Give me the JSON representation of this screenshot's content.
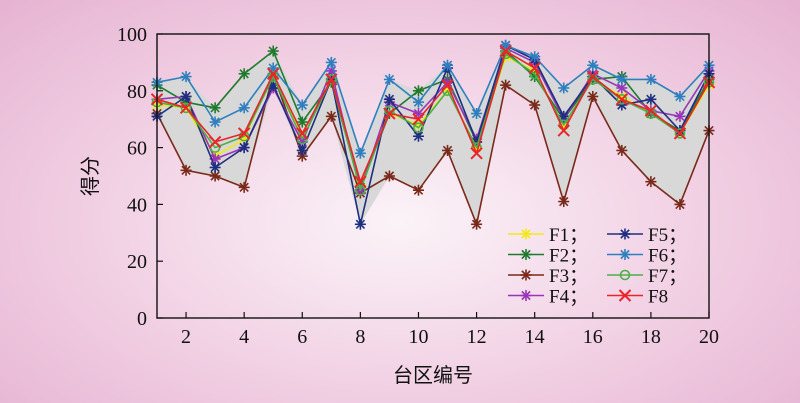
{
  "chart_data": {
    "type": "line",
    "title": "",
    "xlabel": "台区编号",
    "ylabel": "得分",
    "xlim": [
      1,
      20
    ],
    "ylim": [
      0,
      100
    ],
    "x": [
      1,
      2,
      3,
      4,
      5,
      6,
      7,
      8,
      9,
      10,
      11,
      12,
      13,
      14,
      15,
      16,
      17,
      18,
      19,
      20
    ],
    "x_ticks": [
      2,
      4,
      6,
      8,
      10,
      12,
      14,
      16,
      18,
      20
    ],
    "y_ticks": [
      0,
      20,
      40,
      60,
      80,
      100
    ],
    "grid": false,
    "legend_position": "bottom-right",
    "band_fill_color": "#d8d8d8",
    "series": [
      {
        "name": "F1；",
        "color": "#f2ea18",
        "marker": "star",
        "values": [
          75,
          74,
          57,
          63,
          86,
          64,
          83,
          47,
          72,
          68,
          80,
          60,
          92,
          87,
          68,
          84,
          78,
          72,
          65,
          82
        ]
      },
      {
        "name": "F2；",
        "color": "#1f7a2e",
        "marker": "star",
        "values": [
          82,
          76,
          74,
          86,
          94,
          69,
          83,
          46,
          72,
          80,
          84,
          62,
          94,
          85,
          70,
          84,
          85,
          72,
          66,
          84
        ]
      },
      {
        "name": "F3；",
        "color": "#7a2a1a",
        "marker": "star",
        "values": [
          72,
          52,
          50,
          46,
          86,
          57,
          71,
          44,
          50,
          45,
          59,
          33,
          82,
          75,
          41,
          78,
          59,
          48,
          40,
          66
        ]
      },
      {
        "name": "F4；",
        "color": "#9a35b8",
        "marker": "star",
        "values": [
          77,
          78,
          56,
          60,
          81,
          62,
          87,
          45,
          76,
          72,
          83,
          63,
          95,
          90,
          70,
          86,
          81,
          73,
          71,
          87
        ]
      },
      {
        "name": "F5；",
        "color": "#1f2f80",
        "marker": "star",
        "values": [
          71,
          78,
          53,
          60,
          82,
          59,
          84,
          33,
          77,
          64,
          88,
          62,
          96,
          91,
          71,
          85,
          75,
          77,
          66,
          86
        ]
      },
      {
        "name": "F6；",
        "color": "#2f7fbf",
        "marker": "star",
        "values": [
          83,
          85,
          69,
          74,
          88,
          75,
          90,
          58,
          84,
          76,
          89,
          72,
          96,
          92,
          81,
          89,
          84,
          84,
          78,
          89
        ]
      },
      {
        "name": "F7；",
        "color": "#4bb04a",
        "marker": "circle",
        "values": [
          76,
          74,
          60,
          64,
          85,
          63,
          84,
          45,
          73,
          67,
          80,
          60,
          93,
          86,
          68,
          84,
          77,
          72,
          65,
          83
        ]
      },
      {
        "name": "F8",
        "color": "#e8262a",
        "marker": "x",
        "values": [
          77,
          74,
          62,
          65,
          86,
          65,
          84,
          48,
          72,
          70,
          82,
          58,
          94,
          88,
          66,
          85,
          77,
          73,
          65,
          83
        ]
      }
    ]
  }
}
